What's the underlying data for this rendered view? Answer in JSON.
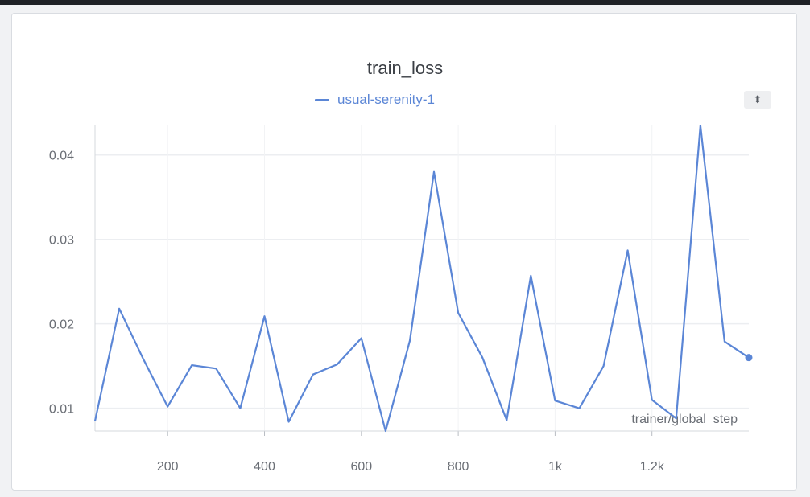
{
  "chart_data": {
    "type": "line",
    "title": "train_loss",
    "xlabel": "trainer/global_step",
    "ylabel": "",
    "xlim": [
      50,
      1400
    ],
    "ylim": [
      0.0073,
      0.0435
    ],
    "grid": true,
    "legend_placement": "top-center",
    "x_ticks": [
      {
        "value": 200,
        "label": "200"
      },
      {
        "value": 400,
        "label": "400"
      },
      {
        "value": 600,
        "label": "600"
      },
      {
        "value": 800,
        "label": "800"
      },
      {
        "value": 1000,
        "label": "1k"
      },
      {
        "value": 1200,
        "label": "1.2k"
      }
    ],
    "y_ticks": [
      {
        "value": 0.01,
        "label": "0.01"
      },
      {
        "value": 0.02,
        "label": "0.02"
      },
      {
        "value": 0.03,
        "label": "0.03"
      },
      {
        "value": 0.04,
        "label": "0.04"
      }
    ],
    "series": [
      {
        "name": "usual-serenity-1",
        "color": "#5b86d6",
        "x": [
          50,
          100,
          150,
          200,
          250,
          300,
          350,
          400,
          450,
          500,
          550,
          600,
          650,
          700,
          750,
          800,
          850,
          900,
          950,
          1000,
          1050,
          1100,
          1150,
          1200,
          1250,
          1300,
          1350,
          1400
        ],
        "y": [
          0.0085,
          0.0218,
          0.0158,
          0.0102,
          0.0151,
          0.0147,
          0.01,
          0.0209,
          0.0084,
          0.014,
          0.0152,
          0.0183,
          0.0073,
          0.018,
          0.038,
          0.0213,
          0.016,
          0.0086,
          0.0257,
          0.0109,
          0.01,
          0.015,
          0.0287,
          0.011,
          0.0088,
          0.0435,
          0.0179,
          0.016
        ]
      }
    ]
  },
  "ui": {
    "sort_icon": "sort-arrows-icon",
    "sort_glyph": "⬍"
  }
}
